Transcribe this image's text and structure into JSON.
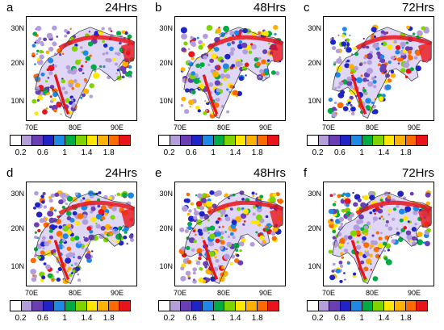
{
  "panels": [
    {
      "letter": "a",
      "lead": "24Hrs"
    },
    {
      "letter": "b",
      "lead": "48Hrs"
    },
    {
      "letter": "c",
      "lead": "72Hrs"
    },
    {
      "letter": "d",
      "lead": "24Hrs"
    },
    {
      "letter": "e",
      "lead": "48Hrs"
    },
    {
      "letter": "f",
      "lead": "72Hrs"
    }
  ],
  "axes": {
    "lat_ticks": [
      "30N",
      "20N",
      "10N"
    ],
    "lon_ticks": [
      "70E",
      "80E",
      "90E"
    ]
  },
  "colorbar": {
    "labels": [
      "0.2",
      "0.6",
      "1",
      "1.4",
      "1.8"
    ],
    "colors": [
      "#ffffff",
      "#b39ddb",
      "#6a3fb5",
      "#1e24c8",
      "#1e88e5",
      "#00aa44",
      "#7fd400",
      "#ffe600",
      "#ffb000",
      "#ff6a00",
      "#e8141c"
    ]
  },
  "colors": {
    "coastline": "#444444",
    "himalaya": "#e8141c",
    "field_low": "#8a6fd6",
    "field_mid": "#1e88e5",
    "field_high": "#ffe600"
  }
}
